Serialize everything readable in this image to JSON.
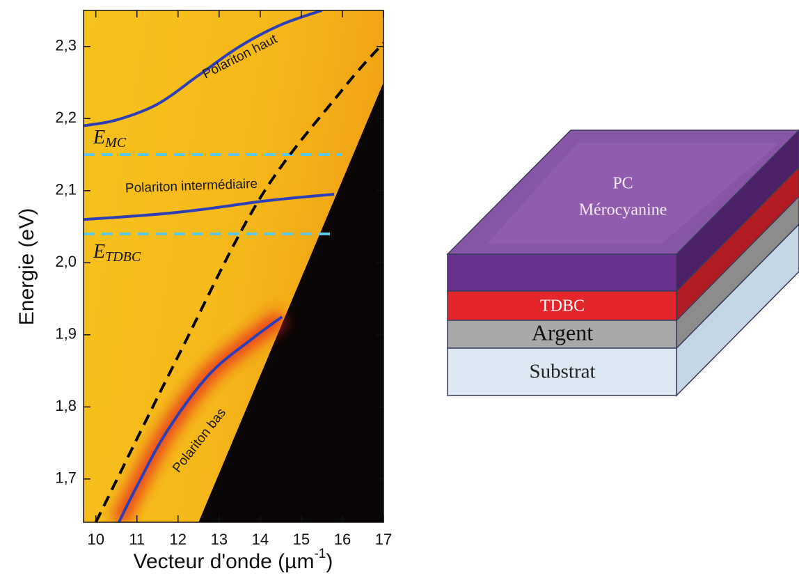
{
  "chart_data": {
    "type": "line",
    "ylabel": "Energie (eV)",
    "xlabel": "Vecteur d'onde (µm",
    "xlabel_sup": "-1",
    "xlabel_end": ")",
    "xlim": [
      9.7,
      17
    ],
    "ylim": [
      1.64,
      2.35
    ],
    "xticks": [
      10,
      11,
      12,
      13,
      14,
      15,
      16,
      17
    ],
    "yticks": [
      {
        "value": 1.7,
        "label": "1,7"
      },
      {
        "value": 1.8,
        "label": "1,8"
      },
      {
        "value": 1.9,
        "label": "1,9"
      },
      {
        "value": 2.0,
        "label": "2,0"
      },
      {
        "value": 2.1,
        "label": "2,1"
      },
      {
        "value": 2.2,
        "label": "2,2"
      },
      {
        "value": 2.3,
        "label": "2,3"
      }
    ],
    "shaded_region": {
      "x": [
        12.5,
        17
      ],
      "values": [
        1.64,
        2.25
      ],
      "color": "#0a0606"
    },
    "series": [
      {
        "name": "Polariton haut",
        "color": "#2e3fb5",
        "x": [
          9.7,
          10.5,
          11.5,
          12.5,
          13.5,
          14.5,
          15.5
        ],
        "values": [
          2.19,
          2.198,
          2.22,
          2.26,
          2.3,
          2.33,
          2.35
        ]
      },
      {
        "name": "Polariton intermédiaire",
        "color": "#2e3fb5",
        "x": [
          9.7,
          11,
          12,
          13,
          14,
          15,
          15.8
        ],
        "values": [
          2.06,
          2.065,
          2.07,
          2.077,
          2.085,
          2.091,
          2.095
        ]
      },
      {
        "name": "Polariton bas",
        "color": "#2e3fb5",
        "x": [
          10.56,
          11,
          11.74,
          12.76,
          13.77,
          14.53
        ],
        "values": [
          1.64,
          1.69,
          1.767,
          1.845,
          1.893,
          1.925
        ]
      },
      {
        "color": "#000000",
        "style": "dashed",
        "x": [
          10,
          12,
          14,
          16,
          17
        ],
        "values": [
          1.64,
          1.87,
          2.09,
          2.24,
          2.305
        ]
      }
    ],
    "hlines": [
      {
        "value": 2.15,
        "x": [
          9.7,
          16.0
        ],
        "symbol": "E",
        "subscript": "MC",
        "color": "#5ec8e8"
      },
      {
        "value": 2.04,
        "x": [
          9.7,
          15.8
        ],
        "symbol": "E",
        "subscript": "TDBC",
        "color": "#5ec8e8"
      }
    ]
  },
  "diagram": {
    "layers": [
      {
        "label": [
          "PC",
          "Mérocyanine"
        ]
      },
      {
        "label": [
          "TDBC"
        ]
      },
      {
        "label": [
          "Argent"
        ]
      },
      {
        "label": [
          "Substrat"
        ]
      }
    ]
  }
}
